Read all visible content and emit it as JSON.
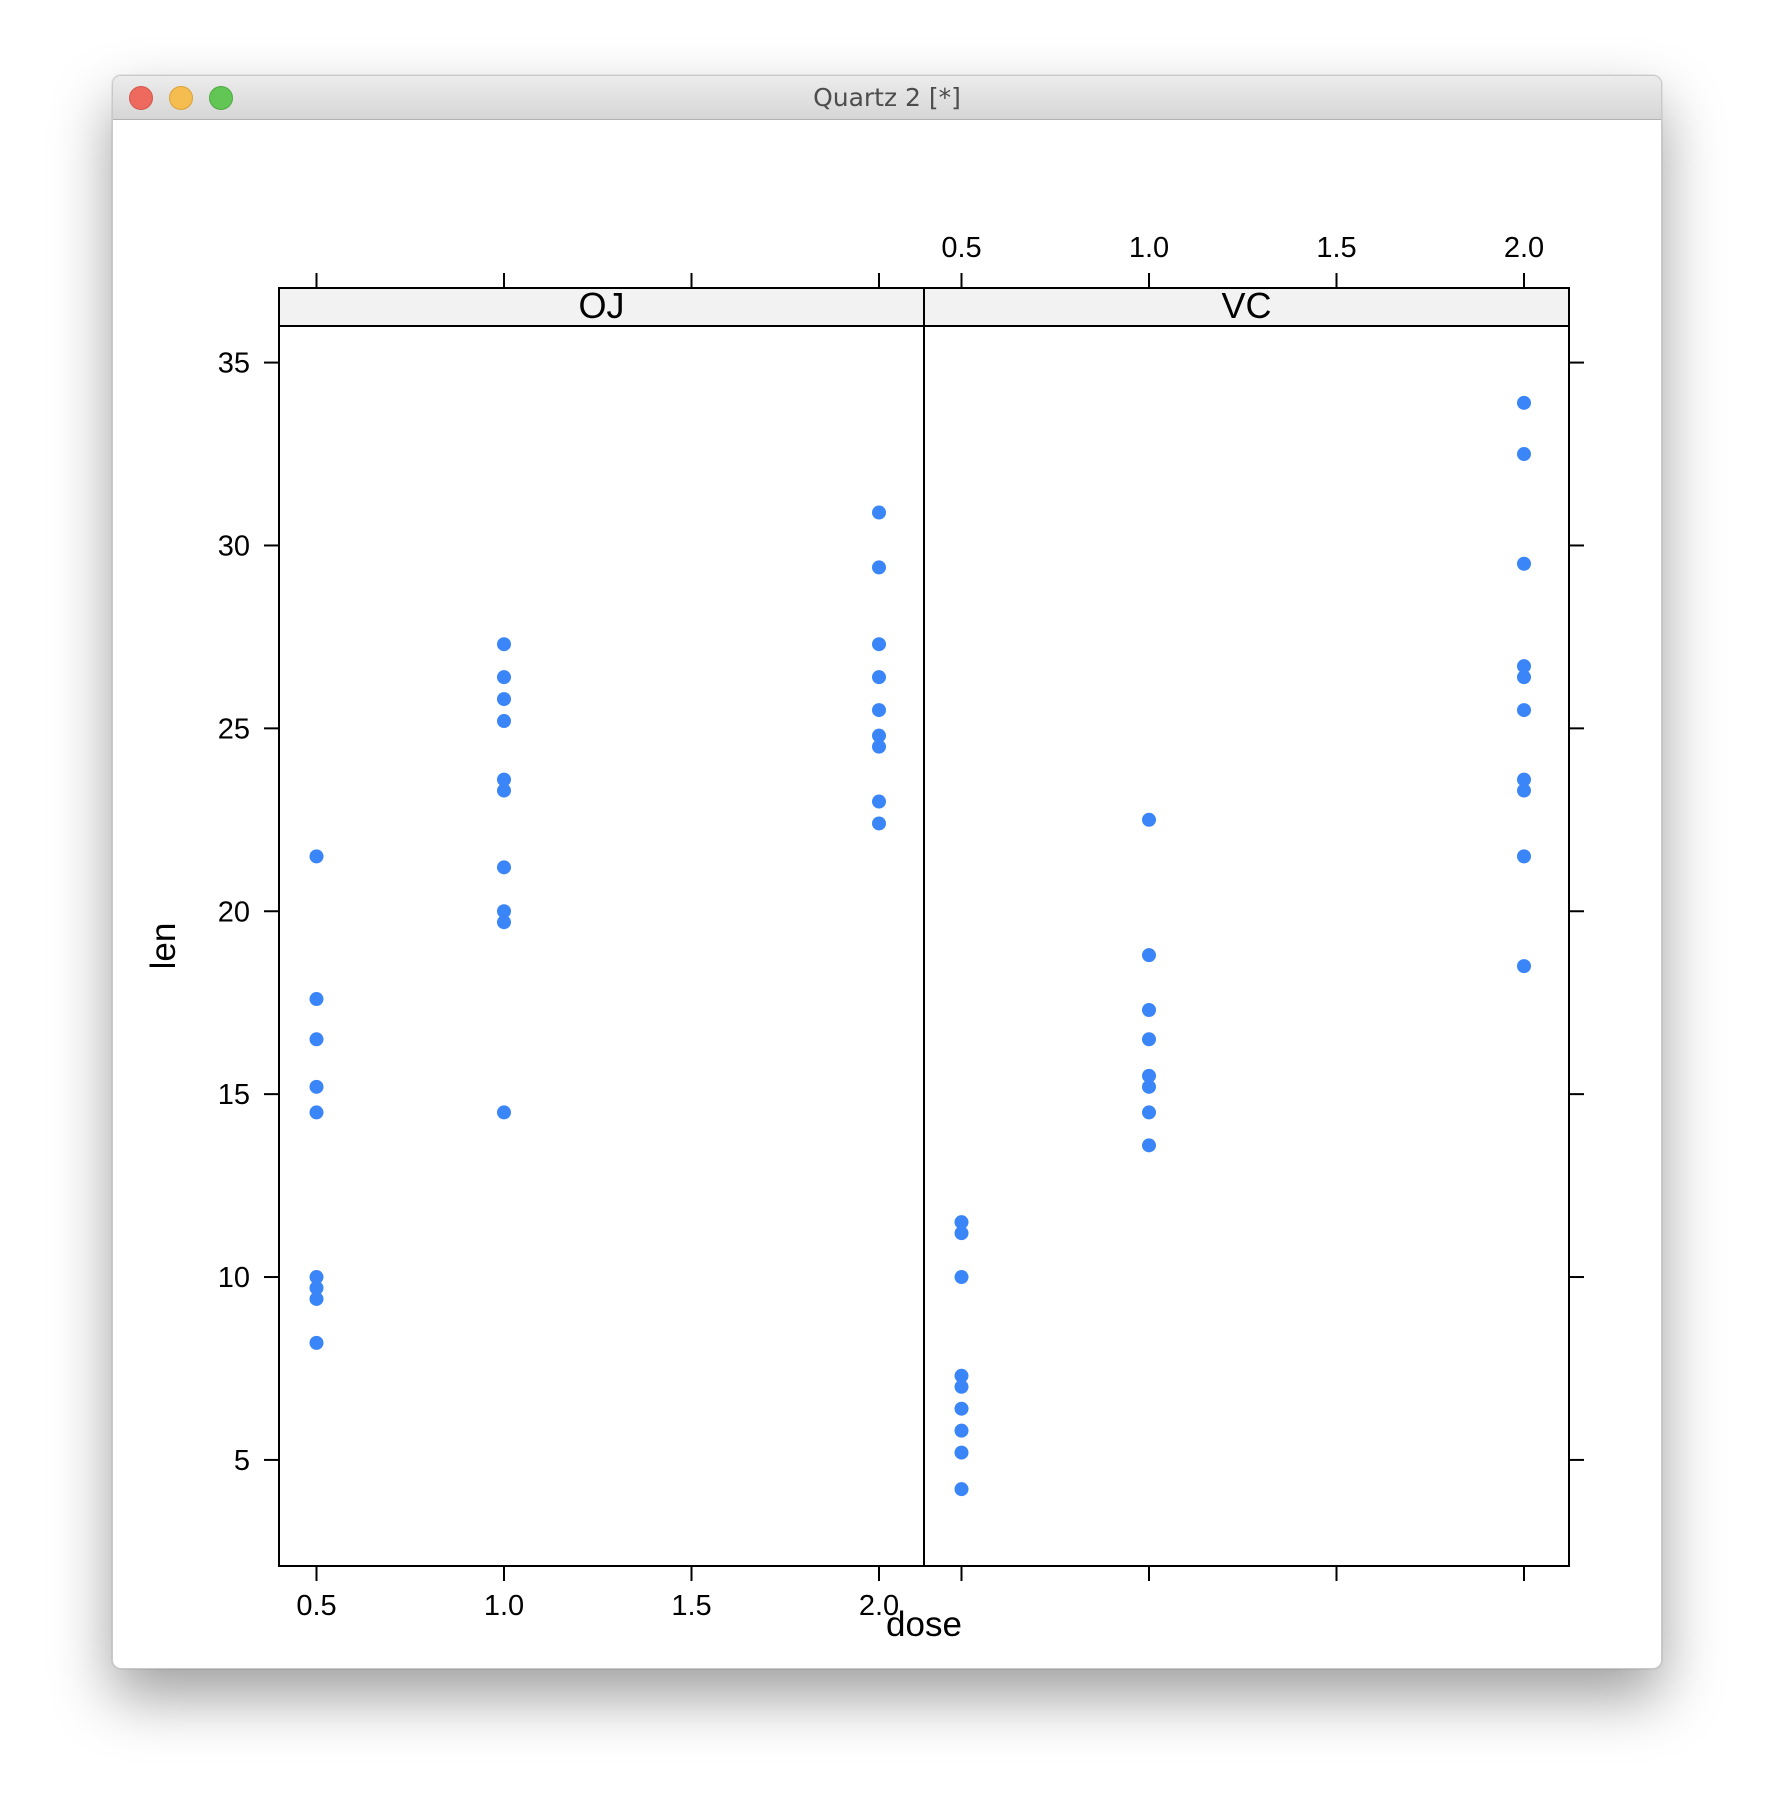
{
  "window": {
    "title": "Quartz 2 [*]"
  },
  "chart_data": {
    "type": "scatter",
    "xlabel": "dose",
    "ylabel": "len",
    "xlim": [
      0.4,
      2.12
    ],
    "ylim": [
      2.1,
      36.0
    ],
    "x_ticks": [
      0.5,
      1.0,
      1.5,
      2.0
    ],
    "x_tick_labels": [
      "0.5",
      "1.0",
      "1.5",
      "2.0"
    ],
    "y_ticks": [
      5,
      10,
      15,
      20,
      25,
      30,
      35
    ],
    "y_tick_labels": [
      "5",
      "10",
      "15",
      "20",
      "25",
      "30",
      "35"
    ],
    "grid": false,
    "point_color": "#3a85f7",
    "panels": [
      {
        "label": "OJ",
        "points": [
          [
            0.5,
            21.5
          ],
          [
            0.5,
            17.6
          ],
          [
            0.5,
            16.5
          ],
          [
            0.5,
            15.2
          ],
          [
            0.5,
            14.5
          ],
          [
            0.5,
            10.0
          ],
          [
            0.5,
            9.7
          ],
          [
            0.5,
            9.4
          ],
          [
            0.5,
            8.2
          ],
          [
            1.0,
            27.3
          ],
          [
            1.0,
            26.4
          ],
          [
            1.0,
            25.8
          ],
          [
            1.0,
            25.2
          ],
          [
            1.0,
            23.6
          ],
          [
            1.0,
            23.3
          ],
          [
            1.0,
            21.2
          ],
          [
            1.0,
            20.0
          ],
          [
            1.0,
            19.7
          ],
          [
            1.0,
            14.5
          ],
          [
            2.0,
            30.9
          ],
          [
            2.0,
            29.4
          ],
          [
            2.0,
            27.3
          ],
          [
            2.0,
            26.4
          ],
          [
            2.0,
            25.5
          ],
          [
            2.0,
            24.8
          ],
          [
            2.0,
            24.5
          ],
          [
            2.0,
            23.0
          ],
          [
            2.0,
            22.4
          ]
        ]
      },
      {
        "label": "VC",
        "points": [
          [
            0.5,
            11.5
          ],
          [
            0.5,
            11.2
          ],
          [
            0.5,
            10.0
          ],
          [
            0.5,
            7.3
          ],
          [
            0.5,
            7.0
          ],
          [
            0.5,
            6.4
          ],
          [
            0.5,
            5.8
          ],
          [
            0.5,
            5.2
          ],
          [
            0.5,
            4.2
          ],
          [
            1.0,
            22.5
          ],
          [
            1.0,
            18.8
          ],
          [
            1.0,
            17.3
          ],
          [
            1.0,
            16.5
          ],
          [
            1.0,
            15.5
          ],
          [
            1.0,
            15.2
          ],
          [
            1.0,
            14.5
          ],
          [
            1.0,
            13.6
          ],
          [
            2.0,
            33.9
          ],
          [
            2.0,
            32.5
          ],
          [
            2.0,
            29.5
          ],
          [
            2.0,
            26.7
          ],
          [
            2.0,
            26.4
          ],
          [
            2.0,
            25.5
          ],
          [
            2.0,
            23.6
          ],
          [
            2.0,
            23.3
          ],
          [
            2.0,
            21.5
          ],
          [
            2.0,
            18.5
          ]
        ]
      }
    ]
  }
}
